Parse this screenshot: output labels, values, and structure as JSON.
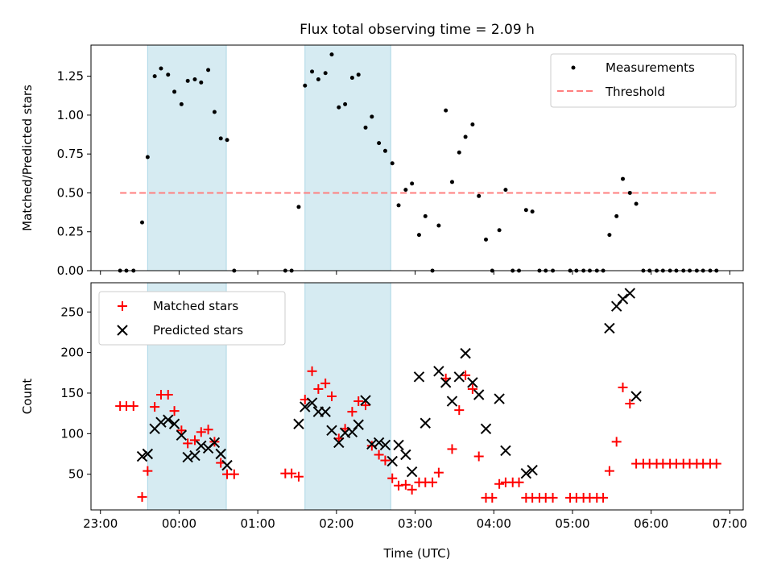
{
  "title": "Flux total observing time = 2.09 h",
  "x_axis": {
    "label": "Time (UTC)",
    "ticks": [
      "23:00",
      "00:00",
      "01:00",
      "02:00",
      "03:00",
      "04:00",
      "05:00",
      "06:00",
      "07:00"
    ]
  },
  "chart_data": [
    {
      "type": "scatter",
      "panel": "top",
      "title": "Flux total observing time = 2.09 h",
      "xlabel": "Time (UTC)",
      "ylabel": "Matched/Predicted stars",
      "x_unit": "hours since 00:00 UTC",
      "xlim": [
        -1.12,
        7.17
      ],
      "ylim": [
        0,
        1.45
      ],
      "yticks": [
        "0.00",
        "0.25",
        "0.50",
        "0.75",
        "1.00",
        "1.25"
      ],
      "legend": {
        "location": "upper right",
        "entries": [
          "Measurements",
          "Threshold"
        ]
      },
      "shaded_intervals": [
        [
          -0.4,
          0.6
        ],
        [
          1.6,
          2.69
        ]
      ],
      "series": [
        {
          "name": "Measurements",
          "marker": "dot",
          "color": "#000000",
          "points": [
            [
              -0.75,
              0
            ],
            [
              -0.67,
              0
            ],
            [
              -0.58,
              0
            ],
            [
              -0.47,
              0.31
            ],
            [
              -0.4,
              0.73
            ],
            [
              -0.31,
              1.25
            ],
            [
              -0.23,
              1.3
            ],
            [
              -0.14,
              1.26
            ],
            [
              -0.06,
              1.15
            ],
            [
              0.03,
              1.07
            ],
            [
              0.11,
              1.22
            ],
            [
              0.2,
              1.23
            ],
            [
              0.28,
              1.21
            ],
            [
              0.37,
              1.29
            ],
            [
              0.45,
              1.02
            ],
            [
              0.53,
              0.85
            ],
            [
              0.61,
              0.84
            ],
            [
              0.7,
              0
            ],
            [
              1.35,
              0
            ],
            [
              1.43,
              0
            ],
            [
              1.52,
              0.41
            ],
            [
              1.6,
              1.19
            ],
            [
              1.69,
              1.28
            ],
            [
              1.77,
              1.23
            ],
            [
              1.86,
              1.27
            ],
            [
              1.94,
              1.39
            ],
            [
              2.03,
              1.05
            ],
            [
              2.11,
              1.07
            ],
            [
              2.2,
              1.24
            ],
            [
              2.28,
              1.26
            ],
            [
              2.37,
              0.92
            ],
            [
              2.45,
              0.99
            ],
            [
              2.54,
              0.82
            ],
            [
              2.62,
              0.77
            ],
            [
              2.71,
              0.69
            ],
            [
              2.79,
              0.42
            ],
            [
              2.88,
              0.52
            ],
            [
              2.96,
              0.56
            ],
            [
              3.05,
              0.23
            ],
            [
              3.13,
              0.35
            ],
            [
              3.22,
              0
            ],
            [
              3.3,
              0.29
            ],
            [
              3.39,
              1.03
            ],
            [
              3.47,
              0.57
            ],
            [
              3.56,
              0.76
            ],
            [
              3.64,
              0.86
            ],
            [
              3.73,
              0.94
            ],
            [
              3.81,
              0.48
            ],
            [
              3.9,
              0.2
            ],
            [
              3.98,
              0
            ],
            [
              4.07,
              0.26
            ],
            [
              4.15,
              0.52
            ],
            [
              4.24,
              0
            ],
            [
              4.32,
              0
            ],
            [
              4.41,
              0.39
            ],
            [
              4.49,
              0.38
            ],
            [
              4.58,
              0
            ],
            [
              4.66,
              0
            ],
            [
              4.75,
              0
            ],
            [
              4.97,
              0
            ],
            [
              5.05,
              0
            ],
            [
              5.14,
              0
            ],
            [
              5.22,
              0
            ],
            [
              5.31,
              0
            ],
            [
              5.39,
              0
            ],
            [
              5.47,
              0.23
            ],
            [
              5.56,
              0.35
            ],
            [
              5.64,
              0.59
            ],
            [
              5.73,
              0.5
            ],
            [
              5.81,
              0.43
            ],
            [
              5.9,
              0
            ],
            [
              5.98,
              0
            ],
            [
              6.07,
              0
            ],
            [
              6.15,
              0
            ],
            [
              6.24,
              0
            ],
            [
              6.32,
              0
            ],
            [
              6.41,
              0
            ],
            [
              6.49,
              0
            ],
            [
              6.58,
              0
            ],
            [
              6.66,
              0
            ],
            [
              6.75,
              0
            ],
            [
              6.83,
              0
            ]
          ]
        },
        {
          "name": "Threshold",
          "marker": "dashed-line",
          "color": "#ff7f7f",
          "points": [
            [
              -0.75,
              0.5
            ],
            [
              6.83,
              0.5
            ]
          ]
        }
      ]
    },
    {
      "type": "scatter",
      "panel": "bottom",
      "xlabel": "Time (UTC)",
      "ylabel": "Count",
      "x_unit": "hours since 00:00 UTC",
      "xlim": [
        -1.12,
        7.17
      ],
      "ylim": [
        6,
        286
      ],
      "yticks": [
        "50",
        "100",
        "150",
        "200",
        "250"
      ],
      "legend": {
        "location": "upper left",
        "entries": [
          "Matched stars",
          "Predicted stars"
        ]
      },
      "shaded_intervals": [
        [
          -0.4,
          0.6
        ],
        [
          1.6,
          2.69
        ]
      ],
      "series": [
        {
          "name": "Matched stars",
          "marker": "plus",
          "color": "#ff0000",
          "points": [
            [
              -0.75,
              134
            ],
            [
              -0.67,
              134
            ],
            [
              -0.58,
              134
            ],
            [
              -0.47,
              22
            ],
            [
              -0.4,
              54
            ],
            [
              -0.31,
              133
            ],
            [
              -0.23,
              148
            ],
            [
              -0.14,
              148
            ],
            [
              -0.06,
              128
            ],
            [
              0.03,
              104
            ],
            [
              0.11,
              88
            ],
            [
              0.2,
              92
            ],
            [
              0.28,
              102
            ],
            [
              0.37,
              105
            ],
            [
              0.45,
              90
            ],
            [
              0.53,
              64
            ],
            [
              0.61,
              50
            ],
            [
              0.7,
              50
            ],
            [
              1.35,
              51
            ],
            [
              1.43,
              51
            ],
            [
              1.52,
              47
            ],
            [
              1.6,
              142
            ],
            [
              1.69,
              177
            ],
            [
              1.77,
              155
            ],
            [
              1.86,
              162
            ],
            [
              1.94,
              146
            ],
            [
              2.03,
              94
            ],
            [
              2.11,
              106
            ],
            [
              2.2,
              127
            ],
            [
              2.28,
              140
            ],
            [
              2.37,
              135
            ],
            [
              2.45,
              85
            ],
            [
              2.54,
              74
            ],
            [
              2.62,
              67
            ],
            [
              2.71,
              45
            ],
            [
              2.79,
              36
            ],
            [
              2.88,
              37
            ],
            [
              2.96,
              31
            ],
            [
              3.05,
              40
            ],
            [
              3.13,
              40
            ],
            [
              3.22,
              40
            ],
            [
              3.3,
              52
            ],
            [
              3.39,
              168
            ],
            [
              3.47,
              81
            ],
            [
              3.56,
              129
            ],
            [
              3.64,
              172
            ],
            [
              3.73,
              155
            ],
            [
              3.81,
              72
            ],
            [
              3.9,
              21
            ],
            [
              3.98,
              21
            ],
            [
              4.07,
              38
            ],
            [
              4.15,
              40
            ],
            [
              4.24,
              40
            ],
            [
              4.32,
              40
            ],
            [
              4.41,
              21
            ],
            [
              4.49,
              21
            ],
            [
              4.58,
              21
            ],
            [
              4.66,
              21
            ],
            [
              4.75,
              21
            ],
            [
              4.97,
              21
            ],
            [
              5.05,
              21
            ],
            [
              5.14,
              21
            ],
            [
              5.22,
              21
            ],
            [
              5.31,
              21
            ],
            [
              5.39,
              21
            ],
            [
              5.47,
              54
            ],
            [
              5.56,
              90
            ],
            [
              5.64,
              157
            ],
            [
              5.73,
              137
            ],
            [
              5.81,
              63
            ],
            [
              5.9,
              63
            ],
            [
              5.98,
              63
            ],
            [
              6.07,
              63
            ],
            [
              6.15,
              63
            ],
            [
              6.24,
              63
            ],
            [
              6.32,
              63
            ],
            [
              6.41,
              63
            ],
            [
              6.49,
              63
            ],
            [
              6.58,
              63
            ],
            [
              6.66,
              63
            ],
            [
              6.75,
              63
            ],
            [
              6.83,
              63
            ]
          ]
        },
        {
          "name": "Predicted stars",
          "marker": "x",
          "color": "#000000",
          "points": [
            [
              -0.47,
              72
            ],
            [
              -0.4,
              75
            ],
            [
              -0.31,
              106
            ],
            [
              -0.23,
              114
            ],
            [
              -0.14,
              117
            ],
            [
              -0.06,
              112
            ],
            [
              0.03,
              98
            ],
            [
              0.11,
              71
            ],
            [
              0.2,
              73
            ],
            [
              0.28,
              85
            ],
            [
              0.37,
              82
            ],
            [
              0.45,
              89
            ],
            [
              0.53,
              75
            ],
            [
              0.61,
              61
            ],
            [
              1.52,
              112
            ],
            [
              1.6,
              133
            ],
            [
              1.69,
              138
            ],
            [
              1.77,
              127
            ],
            [
              1.86,
              127
            ],
            [
              1.94,
              104
            ],
            [
              2.03,
              89
            ],
            [
              2.11,
              101
            ],
            [
              2.2,
              102
            ],
            [
              2.28,
              111
            ],
            [
              2.37,
              141
            ],
            [
              2.45,
              87
            ],
            [
              2.54,
              89
            ],
            [
              2.62,
              86
            ],
            [
              2.71,
              66
            ],
            [
              2.79,
              86
            ],
            [
              2.88,
              74
            ],
            [
              2.96,
              53
            ],
            [
              3.05,
              170
            ],
            [
              3.13,
              113
            ],
            [
              3.3,
              177
            ],
            [
              3.39,
              163
            ],
            [
              3.47,
              140
            ],
            [
              3.56,
              170
            ],
            [
              3.64,
              199
            ],
            [
              3.73,
              163
            ],
            [
              3.81,
              148
            ],
            [
              3.9,
              106
            ],
            [
              4.07,
              143
            ],
            [
              4.15,
              79
            ],
            [
              4.41,
              51
            ],
            [
              4.49,
              55
            ],
            [
              5.47,
              230
            ],
            [
              5.56,
              257
            ],
            [
              5.64,
              266
            ],
            [
              5.73,
              273
            ],
            [
              5.81,
              146
            ]
          ]
        }
      ]
    }
  ]
}
